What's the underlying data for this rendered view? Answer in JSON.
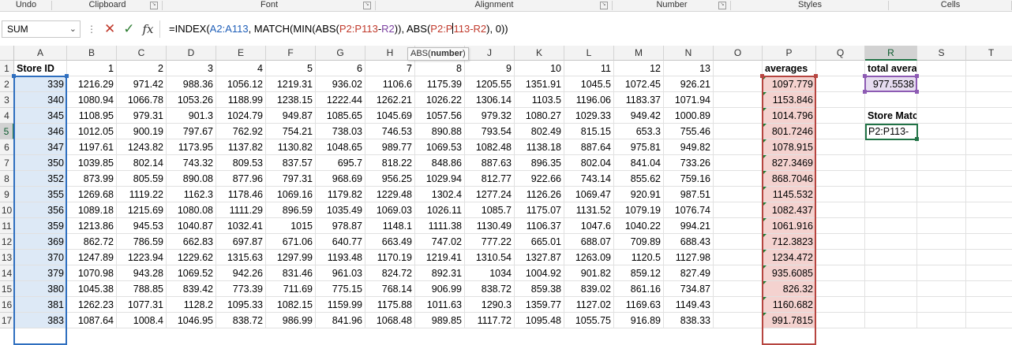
{
  "ribbon": {
    "groups": [
      {
        "label": "Undo",
        "launcher": false
      },
      {
        "label": "Clipboard",
        "launcher": true
      },
      {
        "label": "Font",
        "launcher": true
      },
      {
        "label": "Alignment",
        "launcher": true
      },
      {
        "label": "Number",
        "launcher": true
      },
      {
        "label": "Styles",
        "launcher": false
      },
      {
        "label": "Cells",
        "launcher": false
      }
    ]
  },
  "formula_bar": {
    "name_box": "SUM",
    "fx_label": "fx",
    "formula_parts": [
      {
        "text": "=INDEX(",
        "cls": ""
      },
      {
        "text": "A2:A113",
        "cls": "ref-blue"
      },
      {
        "text": ", MATCH(MIN(ABS(",
        "cls": ""
      },
      {
        "text": "P2:P113",
        "cls": "ref-red"
      },
      {
        "text": "-",
        "cls": ""
      },
      {
        "text": "R2",
        "cls": "ref-purple"
      },
      {
        "text": ")), ABS(",
        "cls": ""
      },
      {
        "text": "P2:P",
        "cls": "ref-red"
      },
      {
        "text": "|",
        "cls": "cursor"
      },
      {
        "text": "113-R2",
        "cls": "ref-red"
      },
      {
        "text": "), 0))",
        "cls": ""
      }
    ],
    "tooltip_prefix": "ABS(",
    "tooltip_arg": "number",
    "tooltip_suffix": ")"
  },
  "sheet": {
    "columns": [
      "A",
      "B",
      "C",
      "D",
      "E",
      "F",
      "G",
      "H",
      "I",
      "J",
      "K",
      "L",
      "M",
      "N",
      "O",
      "P",
      "Q",
      "R",
      "S",
      "T"
    ],
    "selected_column": "R",
    "selected_row": "5",
    "row_numbers": [
      "1",
      "2",
      "3",
      "4",
      "5",
      "6",
      "7",
      "8",
      "9",
      "10",
      "11",
      "12",
      "13",
      "14",
      "15",
      "16",
      "17"
    ],
    "header_row": [
      "Store ID",
      "1",
      "2",
      "3",
      "4",
      "5",
      "6",
      "7",
      "8",
      "9",
      "10",
      "11",
      "12",
      "13",
      "",
      "averages",
      "",
      "total average",
      "",
      ""
    ],
    "rows": [
      [
        "339",
        "1216.29",
        "971.42",
        "988.36",
        "1056.12",
        "1219.31",
        "936.02",
        "1106.6",
        "1175.39",
        "1205.55",
        "1351.91",
        "1045.5",
        "1072.45",
        "926.21",
        "",
        "1097.779",
        "",
        "977.5538",
        "",
        ""
      ],
      [
        "340",
        "1080.94",
        "1066.78",
        "1053.26",
        "1188.99",
        "1238.15",
        "1222.44",
        "1262.21",
        "1026.22",
        "1306.14",
        "1103.5",
        "1196.06",
        "1183.37",
        "1071.94",
        "",
        "1153.846",
        "",
        "",
        "",
        ""
      ],
      [
        "345",
        "1108.95",
        "979.31",
        "901.3",
        "1024.79",
        "949.87",
        "1085.65",
        "1045.69",
        "1057.56",
        "979.32",
        "1080.27",
        "1029.33",
        "949.42",
        "1000.89",
        "",
        "1014.796",
        "",
        "Store Match",
        "",
        ""
      ],
      [
        "346",
        "1012.05",
        "900.19",
        "797.67",
        "762.92",
        "754.21",
        "738.03",
        "746.53",
        "890.88",
        "793.54",
        "802.49",
        "815.15",
        "653.3",
        "755.46",
        "",
        "801.7246",
        "",
        "P2:P113-",
        "",
        ""
      ],
      [
        "347",
        "1197.61",
        "1243.82",
        "1173.95",
        "1137.82",
        "1130.82",
        "1048.65",
        "989.77",
        "1069.53",
        "1082.48",
        "1138.18",
        "887.64",
        "975.81",
        "949.82",
        "",
        "1078.915",
        "",
        "",
        "",
        ""
      ],
      [
        "350",
        "1039.85",
        "802.14",
        "743.32",
        "809.53",
        "837.57",
        "695.7",
        "818.22",
        "848.86",
        "887.63",
        "896.35",
        "802.04",
        "841.04",
        "733.26",
        "",
        "827.3469",
        "",
        "",
        "",
        ""
      ],
      [
        "352",
        "873.99",
        "805.59",
        "890.08",
        "877.96",
        "797.31",
        "968.69",
        "956.25",
        "1029.94",
        "812.77",
        "922.66",
        "743.14",
        "855.62",
        "759.16",
        "",
        "868.7046",
        "",
        "",
        "",
        ""
      ],
      [
        "355",
        "1269.68",
        "1119.22",
        "1162.3",
        "1178.46",
        "1069.16",
        "1179.82",
        "1229.48",
        "1302.4",
        "1277.24",
        "1126.26",
        "1069.47",
        "920.91",
        "987.51",
        "",
        "1145.532",
        "",
        "",
        "",
        ""
      ],
      [
        "356",
        "1089.18",
        "1215.69",
        "1080.08",
        "1111.29",
        "896.59",
        "1035.49",
        "1069.03",
        "1026.11",
        "1085.7",
        "1175.07",
        "1131.52",
        "1079.19",
        "1076.74",
        "",
        "1082.437",
        "",
        "",
        "",
        ""
      ],
      [
        "359",
        "1213.86",
        "945.53",
        "1040.87",
        "1032.41",
        "1015",
        "978.87",
        "1148.1",
        "1111.38",
        "1130.49",
        "1106.37",
        "1047.6",
        "1040.22",
        "994.21",
        "",
        "1061.916",
        "",
        "",
        "",
        ""
      ],
      [
        "369",
        "862.72",
        "786.59",
        "662.83",
        "697.87",
        "671.06",
        "640.77",
        "663.49",
        "747.02",
        "777.22",
        "665.01",
        "688.07",
        "709.89",
        "688.43",
        "",
        "712.3823",
        "",
        "",
        "",
        ""
      ],
      [
        "370",
        "1247.89",
        "1223.94",
        "1229.62",
        "1315.63",
        "1297.99",
        "1193.48",
        "1170.19",
        "1219.41",
        "1310.54",
        "1327.87",
        "1263.09",
        "1120.5",
        "1127.98",
        "",
        "1234.472",
        "",
        "",
        "",
        ""
      ],
      [
        "379",
        "1070.98",
        "943.28",
        "1069.52",
        "942.26",
        "831.46",
        "961.03",
        "824.72",
        "892.31",
        "1034",
        "1004.92",
        "901.82",
        "859.12",
        "827.49",
        "",
        "935.6085",
        "",
        "",
        "",
        ""
      ],
      [
        "380",
        "1045.38",
        "788.85",
        "839.42",
        "773.39",
        "711.69",
        "775.15",
        "768.14",
        "906.99",
        "838.72",
        "859.38",
        "839.02",
        "861.16",
        "734.87",
        "",
        "826.32",
        "",
        "",
        "",
        ""
      ],
      [
        "381",
        "1262.23",
        "1077.31",
        "1128.2",
        "1095.33",
        "1082.15",
        "1159.99",
        "1175.88",
        "1011.63",
        "1290.3",
        "1359.77",
        "1127.02",
        "1169.63",
        "1149.43",
        "",
        "1160.682",
        "",
        "",
        "",
        ""
      ],
      [
        "383",
        "1087.64",
        "1008.4",
        "1046.95",
        "838.72",
        "986.99",
        "841.96",
        "1068.48",
        "989.85",
        "1117.72",
        "1095.48",
        "1055.75",
        "916.89",
        "838.33",
        "",
        "991.7815",
        "",
        "",
        "",
        ""
      ]
    ]
  },
  "colors": {
    "range_a": "#2f6fbf",
    "range_p": "#b64540",
    "range_r": "#8d5bb3",
    "active_cell": "#217346"
  }
}
